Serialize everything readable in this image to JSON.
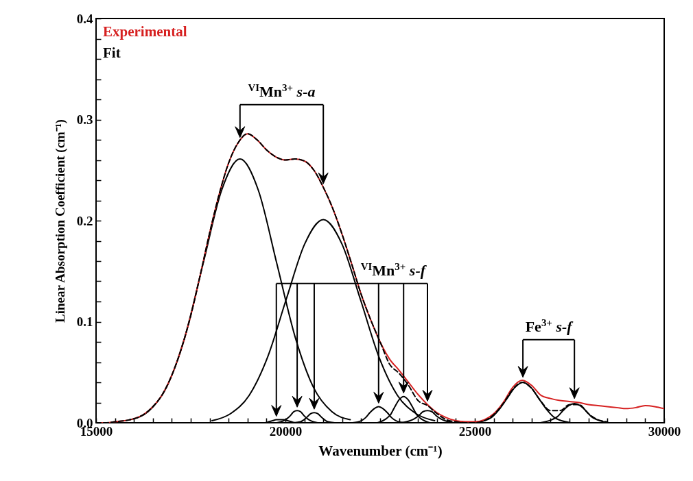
{
  "chart_data": {
    "type": "line",
    "xlabel": "Wavenumber (cm⁻¹)",
    "ylabel": "Linear Absorption Coefficient (cm⁻¹)",
    "xlim": [
      15000,
      30000
    ],
    "ylim": [
      0,
      0.4
    ],
    "xticks": [
      15000,
      {
        "value": 15500,
        "label": null
      },
      {
        "value": 16000,
        "label": null
      },
      {
        "value": 16500,
        "label": null
      },
      {
        "value": 17000,
        "label": null
      },
      {
        "value": 17500,
        "label": null
      },
      {
        "value": 18000,
        "label": null
      },
      {
        "value": 18500,
        "label": null
      },
      {
        "value": 19000,
        "label": null
      },
      {
        "value": 19500,
        "label": null
      },
      20000,
      {
        "value": 20500,
        "label": null
      },
      {
        "value": 21000,
        "label": null
      },
      {
        "value": 21500,
        "label": null
      },
      {
        "value": 22000,
        "label": null
      },
      {
        "value": 22500,
        "label": null
      },
      {
        "value": 23000,
        "label": null
      },
      {
        "value": 23500,
        "label": null
      },
      {
        "value": 24000,
        "label": null
      },
      {
        "value": 24500,
        "label": null
      },
      25000,
      {
        "value": 25500,
        "label": null
      },
      {
        "value": 26000,
        "label": null
      },
      {
        "value": 26500,
        "label": null
      },
      {
        "value": 27000,
        "label": null
      },
      {
        "value": 27500,
        "label": null
      },
      {
        "value": 28000,
        "label": null
      },
      {
        "value": 28500,
        "label": null
      },
      {
        "value": 29000,
        "label": null
      },
      {
        "value": 29500,
        "label": null
      },
      30000
    ],
    "yticks": [
      {
        "value": 0,
        "label": "0.0"
      },
      {
        "value": 0.02,
        "label": null
      },
      {
        "value": 0.04,
        "label": null
      },
      {
        "value": 0.06,
        "label": null
      },
      {
        "value": 0.08,
        "label": null
      },
      0.1,
      {
        "value": 0.12,
        "label": null
      },
      {
        "value": 0.14,
        "label": null
      },
      {
        "value": 0.16,
        "label": null
      },
      {
        "value": 0.18,
        "label": null
      },
      0.2,
      {
        "value": 0.22,
        "label": null
      },
      {
        "value": 0.24,
        "label": null
      },
      {
        "value": 0.26,
        "label": null
      },
      {
        "value": 0.28,
        "label": null
      },
      0.3,
      {
        "value": 0.32,
        "label": null
      },
      {
        "value": 0.34,
        "label": null
      },
      {
        "value": 0.36,
        "label": null
      },
      {
        "value": 0.38,
        "label": null
      },
      0.4
    ],
    "legend": "top left",
    "annotations": [
      "$^{VI}$Mn$^{3+}$ s-a",
      "$^{VI}$Mn$^{3+}$ s-f",
      "Fe$^{3+}$ s-f"
    ],
    "series": [
      {
        "name": "Experimental",
        "color": "#d62020",
        "x": [
          15000,
          15250,
          15500,
          15750,
          16000,
          16250,
          16500,
          16750,
          17000,
          17250,
          17500,
          17750,
          18000,
          18250,
          18500,
          18750,
          19000,
          19250,
          19500,
          19750,
          20000,
          20250,
          20500,
          20750,
          21000,
          21250,
          21500,
          21750,
          22000,
          22250,
          22500,
          22750,
          23000,
          23250,
          23500,
          23750,
          24000,
          24250,
          24500,
          24750,
          25000,
          25250,
          25500,
          25750,
          26000,
          26250,
          26500,
          26750,
          27000,
          27250,
          27500,
          27750,
          28000,
          28250,
          28500,
          28750,
          29000,
          29250,
          29500,
          29750,
          30000
        ],
        "values": [
          0,
          0,
          0.001,
          0.002,
          0.004,
          0.008,
          0.016,
          0.028,
          0.047,
          0.073,
          0.106,
          0.146,
          0.188,
          0.226,
          0.257,
          0.277,
          0.286,
          0.28,
          0.27,
          0.263,
          0.26,
          0.261,
          0.259,
          0.25,
          0.233,
          0.212,
          0.186,
          0.157,
          0.127,
          0.102,
          0.08,
          0.063,
          0.052,
          0.04,
          0.028,
          0.018,
          0.01,
          0.005,
          0.002,
          0.001,
          0.001,
          0.003,
          0.009,
          0.02,
          0.035,
          0.042,
          0.037,
          0.027,
          0.024,
          0.022,
          0.021,
          0.02,
          0.018,
          0.017,
          0.016,
          0.015,
          0.014,
          0.015,
          0.017,
          0.016,
          0.014
        ]
      },
      {
        "name": "Fit",
        "color": "#000000",
        "line_style": "dashed",
        "x": [
          15000,
          15250,
          15500,
          15750,
          16000,
          16250,
          16500,
          16750,
          17000,
          17250,
          17500,
          17750,
          18000,
          18250,
          18500,
          18750,
          19000,
          19250,
          19500,
          19750,
          20000,
          20250,
          20500,
          20750,
          21000,
          21250,
          21500,
          21750,
          22000,
          22250,
          22500,
          22750,
          23000,
          23250,
          23500,
          23750,
          24000,
          24250,
          24500,
          24750,
          25000,
          25250,
          25500,
          25750,
          26000,
          26250,
          26500,
          26750,
          27000,
          27250,
          27500,
          27750,
          28000,
          28250,
          28500
        ],
        "values": [
          0,
          0,
          0.001,
          0.002,
          0.004,
          0.008,
          0.016,
          0.028,
          0.047,
          0.073,
          0.106,
          0.146,
          0.188,
          0.226,
          0.257,
          0.277,
          0.286,
          0.28,
          0.27,
          0.263,
          0.26,
          0.261,
          0.259,
          0.25,
          0.233,
          0.212,
          0.186,
          0.157,
          0.127,
          0.102,
          0.08,
          0.058,
          0.049,
          0.037,
          0.022,
          0.017,
          0.009,
          0.003,
          0.001,
          0,
          0,
          0.002,
          0.008,
          0.019,
          0.033,
          0.04,
          0.034,
          0.021,
          0.012,
          0.012,
          0.018,
          0.018,
          0.009,
          0.003,
          0.001
        ]
      },
      {
        "color": "#000000",
        "x": [
          15890,
          16375,
          16860,
          17345,
          17830,
          18315,
          18800,
          19285,
          19770,
          20255,
          20740,
          21225,
          21710
        ],
        "values": [
          0.003,
          0.011,
          0.035,
          0.085,
          0.158,
          0.23,
          0.261,
          0.23,
          0.158,
          0.085,
          0.035,
          0.011,
          0.003
        ]
      },
      {
        "color": "#000000",
        "x": [
          18060,
          18550,
          19040,
          19530,
          20020,
          20510,
          21000,
          21490,
          21980,
          22470,
          22960,
          23450,
          23940
        ],
        "values": [
          0.002,
          0.009,
          0.027,
          0.065,
          0.122,
          0.177,
          0.201,
          0.177,
          0.122,
          0.065,
          0.027,
          0.009,
          0.002
        ]
      },
      {
        "color": "#000000",
        "x": [
          19260,
          19460,
          19560,
          19660,
          19760,
          19860,
          19960,
          20060,
          20160,
          20260,
          20460
        ],
        "values": [
          0,
          0,
          0.001,
          0.002,
          0.003,
          0.003,
          0.003,
          0.002,
          0.001,
          0,
          0
        ]
      },
      {
        "color": "#000000",
        "x": [
          19770,
          19950,
          20040,
          20130,
          20220,
          20310,
          20400,
          20490,
          20580,
          20670,
          20850
        ],
        "values": [
          0,
          0.002,
          0.004,
          0.007,
          0.011,
          0.012,
          0.011,
          0.007,
          0.004,
          0.002,
          0
        ]
      },
      {
        "color": "#000000",
        "x": [
          20220,
          20400,
          20490,
          20580,
          20670,
          20760,
          20850,
          20940,
          21030,
          21120,
          21300
        ],
        "values": [
          0,
          0.001,
          0.003,
          0.006,
          0.009,
          0.01,
          0.009,
          0.006,
          0.003,
          0.001,
          0
        ]
      },
      {
        "color": "#000000",
        "x": [
          21770,
          22000,
          22115,
          22230,
          22345,
          22460,
          22575,
          22690,
          22805,
          22920,
          23150
        ],
        "values": [
          0,
          0.002,
          0.005,
          0.01,
          0.014,
          0.016,
          0.014,
          0.01,
          0.005,
          0.002,
          0
        ]
      },
      {
        "color": "#000000",
        "x": [
          22430,
          22660,
          22775,
          22890,
          23005,
          23120,
          23235,
          23350,
          23465,
          23580,
          23810
        ],
        "values": [
          0,
          0.004,
          0.008,
          0.016,
          0.023,
          0.026,
          0.023,
          0.016,
          0.008,
          0.004,
          0
        ]
      },
      {
        "color": "#000000",
        "x": [
          23060,
          23290,
          23405,
          23520,
          23635,
          23750,
          23865,
          23980,
          24095,
          24210,
          24440
        ],
        "values": [
          0,
          0.002,
          0.004,
          0.007,
          0.011,
          0.012,
          0.011,
          0.007,
          0.004,
          0.002,
          0
        ]
      },
      {
        "color": "#000000",
        "x": [
          25010,
          25430,
          25640,
          25850,
          26060,
          26270,
          26480,
          26690,
          26900,
          27110,
          27530
        ],
        "values": [
          0,
          0.005,
          0.013,
          0.024,
          0.035,
          0.04,
          0.035,
          0.024,
          0.013,
          0.005,
          0
        ]
      },
      {
        "color": "#000000",
        "x": [
          26730,
          27030,
          27180,
          27330,
          27480,
          27630,
          27780,
          27930,
          28080,
          28230,
          28530
        ],
        "values": [
          0,
          0.003,
          0.006,
          0.012,
          0.017,
          0.019,
          0.017,
          0.012,
          0.006,
          0.003,
          0
        ]
      }
    ]
  }
}
